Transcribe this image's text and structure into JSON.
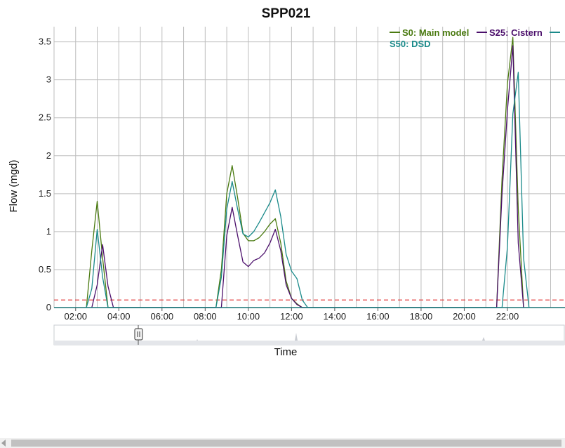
{
  "chart_data": {
    "type": "line",
    "title": "SPP021",
    "xlabel": "Time",
    "ylabel": "Flow (mgd)",
    "xlim": [
      "01:00",
      "24:40"
    ],
    "ylim": [
      0,
      3.7
    ],
    "x_ticks": [
      "02:00",
      "04:00",
      "06:00",
      "08:00",
      "10:00",
      "12:00",
      "14:00",
      "16:00",
      "18:00",
      "20:00",
      "22:00"
    ],
    "y_ticks": [
      0,
      0.5,
      1,
      1.5,
      2,
      2.5,
      3,
      3.5
    ],
    "grid": true,
    "legend_position": "top-right",
    "threshold": {
      "value": 0.1,
      "color": "#e03030",
      "style": "dashed"
    },
    "series": [
      {
        "name": "S0: Main model",
        "color": "#4a7a10",
        "points": [
          [
            "02:30",
            0
          ],
          [
            "02:45",
            0.75
          ],
          [
            "03:00",
            1.4
          ],
          [
            "03:15",
            0.65
          ],
          [
            "03:30",
            0
          ],
          [
            "08:30",
            0
          ],
          [
            "08:45",
            0.5
          ],
          [
            "09:00",
            1.5
          ],
          [
            "09:15",
            1.87
          ],
          [
            "09:30",
            1.45
          ],
          [
            "09:45",
            0.98
          ],
          [
            "10:00",
            0.88
          ],
          [
            "10:15",
            0.88
          ],
          [
            "10:30",
            0.92
          ],
          [
            "10:45",
            1.0
          ],
          [
            "11:00",
            1.1
          ],
          [
            "11:15",
            1.17
          ],
          [
            "11:30",
            0.85
          ],
          [
            "11:45",
            0.35
          ],
          [
            "12:00",
            0.12
          ],
          [
            "12:15",
            0.05
          ],
          [
            "12:30",
            0
          ],
          [
            "21:30",
            0
          ],
          [
            "21:45",
            1.7
          ],
          [
            "22:00",
            2.95
          ],
          [
            "22:15",
            3.56
          ],
          [
            "22:30",
            1.3
          ],
          [
            "22:45",
            0
          ]
        ]
      },
      {
        "name": "S25: Cistern",
        "color": "#4b0f6b",
        "points": [
          [
            "02:45",
            0
          ],
          [
            "03:00",
            0.3
          ],
          [
            "03:15",
            0.83
          ],
          [
            "03:30",
            0.28
          ],
          [
            "03:45",
            0
          ],
          [
            "08:45",
            0
          ],
          [
            "09:00",
            0.95
          ],
          [
            "09:15",
            1.32
          ],
          [
            "09:30",
            0.95
          ],
          [
            "09:45",
            0.6
          ],
          [
            "10:00",
            0.54
          ],
          [
            "10:15",
            0.62
          ],
          [
            "10:30",
            0.65
          ],
          [
            "10:45",
            0.72
          ],
          [
            "11:00",
            0.85
          ],
          [
            "11:15",
            1.03
          ],
          [
            "11:30",
            0.75
          ],
          [
            "11:45",
            0.3
          ],
          [
            "12:00",
            0.12
          ],
          [
            "12:15",
            0.04
          ],
          [
            "12:30",
            0
          ],
          [
            "21:30",
            0
          ],
          [
            "21:45",
            1.5
          ],
          [
            "22:00",
            2.6
          ],
          [
            "22:15",
            3.45
          ],
          [
            "22:30",
            0.85
          ],
          [
            "22:45",
            0
          ]
        ]
      },
      {
        "name": "S50: DSD",
        "color": "#1a8a8a",
        "points": [
          [
            "02:30",
            0
          ],
          [
            "02:45",
            0.25
          ],
          [
            "03:00",
            1.03
          ],
          [
            "03:15",
            0.4
          ],
          [
            "03:30",
            0
          ],
          [
            "08:30",
            0
          ],
          [
            "08:45",
            0.4
          ],
          [
            "09:00",
            1.3
          ],
          [
            "09:15",
            1.66
          ],
          [
            "09:30",
            1.3
          ],
          [
            "09:45",
            0.97
          ],
          [
            "10:00",
            0.93
          ],
          [
            "10:15",
            1.0
          ],
          [
            "10:30",
            1.12
          ],
          [
            "10:45",
            1.25
          ],
          [
            "11:00",
            1.38
          ],
          [
            "11:15",
            1.55
          ],
          [
            "11:30",
            1.2
          ],
          [
            "11:45",
            0.7
          ],
          [
            "12:00",
            0.48
          ],
          [
            "12:15",
            0.38
          ],
          [
            "12:30",
            0.1
          ],
          [
            "12:45",
            0
          ],
          [
            "21:45",
            0
          ],
          [
            "22:00",
            0.8
          ],
          [
            "22:15",
            2.55
          ],
          [
            "22:30",
            3.1
          ],
          [
            "22:45",
            0.65
          ],
          [
            "23:00",
            0
          ]
        ]
      }
    ]
  }
}
